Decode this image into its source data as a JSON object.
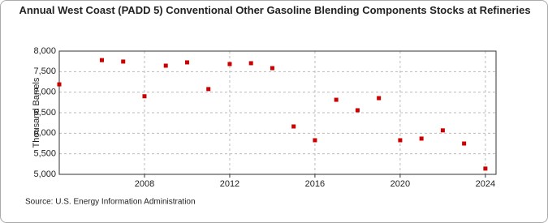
{
  "chart_data": {
    "type": "scatter",
    "title": "Annual West Coast (PADD 5) Conventional Other Gasoline Blending Components Stocks at Refineries",
    "y_label": "Thousand Barrels",
    "source": "Source: U.S. Energy Information Administration",
    "series": [
      {
        "name": "West Coast (PADD 5)",
        "color": "#cc0000",
        "x": [
          2004,
          2006,
          2007,
          2008,
          2009,
          2010,
          2011,
          2012,
          2013,
          2014,
          2015,
          2016,
          2017,
          2018,
          2019,
          2020,
          2021,
          2022,
          2023,
          2024
        ],
        "values": [
          7190,
          7780,
          7745,
          6900,
          7645,
          7725,
          7075,
          7685,
          7705,
          7585,
          6165,
          5830,
          6815,
          6560,
          6855,
          5830,
          5870,
          6070,
          5750,
          5140
        ]
      }
    ],
    "xlim": [
      2004,
      2024.5
    ],
    "xticks": [
      2008,
      2012,
      2016,
      2020,
      2024
    ],
    "ylim": [
      5000,
      8000
    ],
    "yticks": [
      {
        "value": 5000,
        "label": "5,000"
      },
      {
        "value": 5500,
        "label": "5,500"
      },
      {
        "value": 6000,
        "label": "6,000"
      },
      {
        "value": 6500,
        "label": "6,500"
      },
      {
        "value": 7000,
        "label": "7,000"
      },
      {
        "value": 7500,
        "label": "7,500"
      },
      {
        "value": 8000,
        "label": "8,000"
      }
    ],
    "grid": true
  }
}
